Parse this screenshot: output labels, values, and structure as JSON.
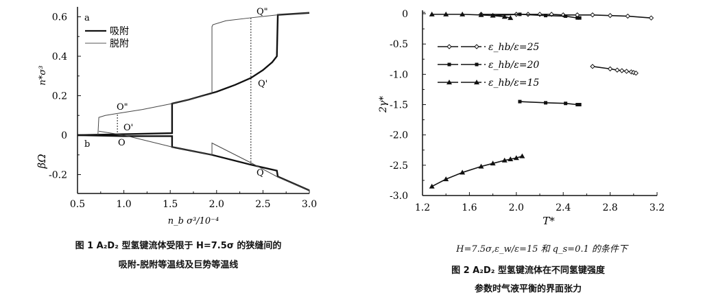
{
  "chart_data": [
    {
      "type": "line",
      "xlabel": "n_b σ³/10⁻⁴",
      "ylabel_top": "n*σ³",
      "ylabel_bottom": "βΩ",
      "xlim": [
        0.5,
        3.0
      ],
      "ylim": [
        -0.3,
        0.65
      ],
      "x_ticks": [
        "0.5",
        "1.0",
        "1.5",
        "2.0",
        "2.5",
        "3.0"
      ],
      "y_ticks": [
        "0.6",
        "0.4",
        "0.2",
        "0",
        "-0.2"
      ],
      "panel_labels": [
        "a",
        "b"
      ],
      "legend": {
        "position": "top-left",
        "entries": [
          {
            "label": "吸附",
            "style": "thick solid"
          },
          {
            "label": "脱附",
            "style": "thin"
          }
        ]
      },
      "annotations": [
        "O\"",
        "O'",
        "O",
        "Q\"",
        "Q'",
        "Q"
      ],
      "series": [
        {
          "name": "吸附",
          "quantity": "n*σ³",
          "points": [
            [
              0.5,
              0
            ],
            [
              1.0,
              0.005
            ],
            [
              1.52,
              0.01
            ],
            [
              1.52,
              0.16
            ],
            [
              1.7,
              0.18
            ],
            [
              2.0,
              0.22
            ],
            [
              2.2,
              0.255
            ],
            [
              2.37,
              0.29
            ],
            [
              2.5,
              0.33
            ],
            [
              2.6,
              0.37
            ],
            [
              2.65,
              0.4
            ],
            [
              2.66,
              0.61
            ],
            [
              3.0,
              0.62
            ]
          ]
        },
        {
          "name": "脱附",
          "quantity": "n*σ³",
          "points": [
            [
              3.0,
              0.62
            ],
            [
              2.66,
              0.61
            ],
            [
              2.37,
              0.595
            ],
            [
              2.1,
              0.58
            ],
            [
              1.96,
              0.56
            ],
            [
              1.95,
              0.55
            ],
            [
              1.95,
              0.21
            ],
            [
              1.7,
              0.18
            ],
            [
              1.52,
              0.16
            ],
            [
              1.2,
              0.13
            ],
            [
              0.93,
              0.11
            ],
            [
              0.8,
              0.1
            ],
            [
              0.73,
              0.09
            ],
            [
              0.72,
              0
            ]
          ]
        },
        {
          "name": "吸附",
          "quantity": "βΩ",
          "points": [
            [
              0.5,
              0
            ],
            [
              1.0,
              -0.005
            ],
            [
              1.52,
              -0.005
            ],
            [
              1.52,
              -0.06
            ],
            [
              1.95,
              -0.1
            ],
            [
              2.37,
              -0.15
            ],
            [
              2.65,
              -0.18
            ],
            [
              2.66,
              -0.21
            ],
            [
              3.0,
              -0.28
            ]
          ]
        },
        {
          "name": "脱附",
          "quantity": "βΩ",
          "points": [
            [
              0.73,
              0.02
            ],
            [
              1.0,
              0
            ],
            [
              1.52,
              -0.06
            ],
            [
              1.95,
              -0.1
            ],
            [
              1.95,
              -0.04
            ],
            [
              2.37,
              -0.14
            ],
            [
              2.65,
              -0.21
            ],
            [
              3.0,
              -0.28
            ]
          ]
        }
      ],
      "guides": [
        {
          "x": 0.93,
          "from": 0,
          "to": 0.11
        },
        {
          "x": 2.37,
          "from": -0.15,
          "to": 0.595
        }
      ]
    },
    {
      "type": "line",
      "xlabel": "T*",
      "ylabel": "2γ*",
      "xlim": [
        1.2,
        3.2
      ],
      "ylim": [
        -3.0,
        0
      ],
      "x_ticks": [
        "1.2",
        "1.6",
        "2.0",
        "2.4",
        "2.8",
        "3.2"
      ],
      "y_ticks": [
        "0",
        "-0.5",
        "-1.0",
        "-1.5",
        "-2.0",
        "-2.5",
        "-3.0"
      ],
      "legend": {
        "position": "upper-left",
        "entries": [
          "ε_hb/ε=25",
          "ε_hb/ε=20",
          "ε_hb/ε=15"
        ]
      },
      "series": [
        {
          "name": "ε_hb/ε=25",
          "marker": "diamond",
          "branches": [
            [
              [
                1.7,
                -0.01
              ],
              [
                2.0,
                -0.01
              ],
              [
                2.1,
                -0.01
              ],
              [
                2.2,
                -0.01
              ],
              [
                2.3,
                -0.01
              ],
              [
                2.4,
                -0.02
              ],
              [
                2.52,
                -0.02
              ],
              [
                2.65,
                -0.02
              ],
              [
                2.8,
                -0.03
              ],
              [
                2.95,
                -0.04
              ],
              [
                3.15,
                -0.07
              ]
            ],
            [
              [
                2.65,
                -0.87
              ],
              [
                2.8,
                -0.91
              ],
              [
                2.86,
                -0.93
              ],
              [
                2.9,
                -0.94
              ],
              [
                2.94,
                -0.95
              ],
              [
                2.98,
                -0.96
              ],
              [
                3.0,
                -0.97
              ],
              [
                3.02,
                -0.98
              ]
            ]
          ]
        },
        {
          "name": "ε_hb/ε=20",
          "marker": "square",
          "branches": [
            [
              [
                1.8,
                -0.03
              ],
              [
                2.03,
                -0.01
              ],
              [
                2.25,
                -0.03
              ],
              [
                2.42,
                -0.04
              ],
              [
                2.52,
                -0.07
              ],
              [
                2.54,
                -0.07
              ]
            ],
            [
              [
                2.03,
                -1.45
              ],
              [
                2.25,
                -1.47
              ],
              [
                2.42,
                -1.48
              ],
              [
                2.52,
                -1.5
              ],
              [
                2.54,
                -1.5
              ]
            ]
          ]
        },
        {
          "name": "ε_hb/ε=15",
          "marker": "triangle",
          "branches": [
            [
              [
                1.28,
                -0.01
              ],
              [
                1.4,
                -0.01
              ],
              [
                1.54,
                -0.01
              ],
              [
                1.7,
                -0.02
              ],
              [
                1.8,
                -0.03
              ],
              [
                1.9,
                -0.05
              ],
              [
                1.95,
                -0.07
              ]
            ],
            [
              [
                1.28,
                -2.85
              ],
              [
                1.4,
                -2.73
              ],
              [
                1.54,
                -2.62
              ],
              [
                1.7,
                -2.52
              ],
              [
                1.8,
                -2.47
              ],
              [
                1.9,
                -2.42
              ],
              [
                1.95,
                -2.4
              ],
              [
                2.0,
                -2.38
              ],
              [
                2.05,
                -2.35
              ]
            ]
          ]
        }
      ]
    }
  ],
  "captions": {
    "fig1_line1": "图 1   A₂D₂ 型氢键流体受限于 H=7.5σ 的狭缝间的",
    "fig1_line2": "吸附-脱附等温线及巨势等温线",
    "fig2_cond": "H=7.5σ,ε_w/ε=15 和 q_s=0.1 的条件下",
    "fig2_line1": "图 2   A₂D₂ 型氢键流体在不同氢键强度",
    "fig2_line2": "参数时气液平衡的界面张力"
  }
}
